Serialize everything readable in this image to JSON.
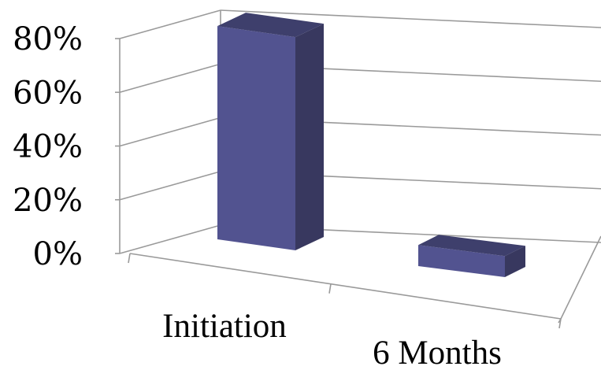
{
  "chart_data": {
    "type": "bar",
    "categories": [
      "Initiation",
      "6 Months"
    ],
    "values": [
      78,
      5
    ],
    "ylim": [
      0,
      80
    ],
    "yticks": [
      0,
      20,
      40,
      60,
      80
    ],
    "ytick_labels": [
      "0%",
      "20%",
      "40%",
      "60%",
      "80%"
    ],
    "grid": true,
    "projection": "3d",
    "colors": {
      "bar_front": "#525390",
      "bar_side": "#38385f",
      "bar_top": "#3e3f6c",
      "grid": "#9a9a9a"
    }
  }
}
